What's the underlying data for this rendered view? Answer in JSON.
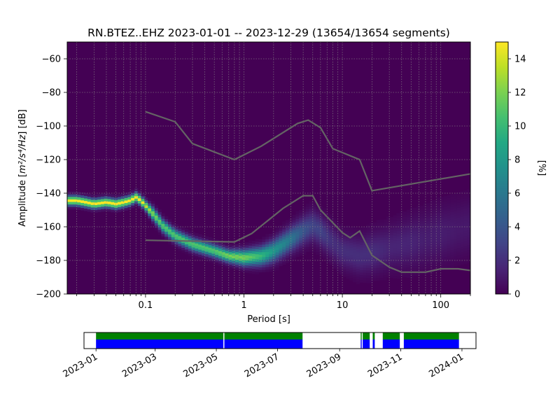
{
  "chart_data": {
    "type": "heatmap",
    "title": "RN.BTEZ..EHZ   2023-01-01 -- 2023-12-29  (13654/13654 segments)",
    "xlabel": "Period [s]",
    "ylabel_prefix": "Amplitude [",
    "ylabel_math": "m²/s⁴/Hz",
    "ylabel_suffix": "] [dB]",
    "x_scale": "log",
    "xlim": [
      0.016,
      200
    ],
    "ylim": [
      -200,
      -50
    ],
    "x_ticks": [
      {
        "value": 0.1,
        "label": "0.1"
      },
      {
        "value": 1,
        "label": "1"
      },
      {
        "value": 10,
        "label": "10"
      },
      {
        "value": 100,
        "label": "100"
      }
    ],
    "y_ticks": [
      {
        "value": -60,
        "label": "−60"
      },
      {
        "value": -80,
        "label": "−80"
      },
      {
        "value": -100,
        "label": "−100"
      },
      {
        "value": -120,
        "label": "−120"
      },
      {
        "value": -140,
        "label": "−140"
      },
      {
        "value": -160,
        "label": "−160"
      },
      {
        "value": -180,
        "label": "−180"
      },
      {
        "value": -200,
        "label": "−200"
      }
    ],
    "grid": true,
    "colormap": "viridis",
    "colorbar": {
      "label": "[%]",
      "range": [
        0,
        15
      ],
      "ticks": [
        {
          "value": 0,
          "label": "0"
        },
        {
          "value": 2,
          "label": "2"
        },
        {
          "value": 4,
          "label": "4"
        },
        {
          "value": 6,
          "label": "6"
        },
        {
          "value": 8,
          "label": "8"
        },
        {
          "value": 10,
          "label": "10"
        },
        {
          "value": 12,
          "label": "12"
        },
        {
          "value": 14,
          "label": "14"
        }
      ]
    },
    "psd_mode_curve": {
      "period": [
        0.016,
        0.02,
        0.025,
        0.03,
        0.04,
        0.05,
        0.06,
        0.07,
        0.08,
        0.09,
        0.1,
        0.12,
        0.15,
        0.2,
        0.3,
        0.5,
        0.7,
        1.0,
        1.5,
        2.0,
        3.0,
        4.0,
        5.0,
        6.0,
        8.0,
        10,
        15,
        20,
        30,
        50,
        70,
        100,
        150,
        200
      ],
      "amplitude_db": [
        -145,
        -145,
        -146,
        -147,
        -146,
        -147,
        -146,
        -145,
        -143,
        -145,
        -148,
        -153,
        -160,
        -166,
        -171,
        -175,
        -178,
        -179,
        -178,
        -175,
        -168,
        -163,
        -160,
        -163,
        -170,
        -175,
        -178,
        -176,
        -173,
        -170,
        -168,
        -165,
        -162,
        -160
      ],
      "spread_db": [
        3,
        3,
        3,
        3,
        3,
        3,
        3,
        3,
        3,
        3,
        3,
        4,
        4,
        4,
        4,
        4,
        4,
        5,
        6,
        7,
        8,
        9,
        10,
        10,
        11,
        11,
        12,
        13,
        14,
        16,
        17,
        18,
        18,
        18
      ],
      "peak_percent": [
        15,
        15,
        15,
        15,
        15,
        15,
        15,
        15,
        15,
        15,
        14,
        12,
        11,
        11,
        11,
        11,
        12,
        12,
        10,
        8,
        6,
        4,
        3,
        3,
        2,
        2,
        2,
        2,
        1.5,
        1.5,
        1.2,
        1.2,
        1,
        1
      ]
    },
    "series": [
      {
        "name": "",
        "period": [
          0.1,
          0.2,
          0.3,
          0.8,
          1.5,
          3.5,
          4.5,
          6.0,
          8.0,
          15,
          20,
          200
        ],
        "amplitude_db": [
          -91.5,
          -97.5,
          -110.5,
          -120,
          -112,
          -98.5,
          -96.5,
          -101,
          -113.5,
          -120,
          -138.5,
          -128.5
        ]
      },
      {
        "name": "",
        "period": [
          0.1,
          0.8,
          1.2,
          2.5,
          4.0,
          5.0,
          6.0,
          10,
          12,
          15,
          20,
          30,
          40,
          70,
          100,
          150,
          200
        ],
        "amplitude_db": [
          -168,
          -169,
          -164,
          -149,
          -141.5,
          -141.5,
          -150,
          -163.5,
          -166.5,
          -162.5,
          -177,
          -184,
          -187,
          -187,
          -185,
          -185,
          -186
        ]
      }
    ],
    "data_availability": {
      "x_range": [
        "2022-12-20",
        "2024-01-15"
      ],
      "x_ticks": [
        "2023-01",
        "2023-03",
        "2023-05",
        "2023-07",
        "2023-09",
        "2023-11",
        "2024-01"
      ],
      "available_color": "#0000ff",
      "gaps_color": "#008000",
      "segments": [
        [
          "2023-01-01",
          "2023-05-08"
        ],
        [
          "2023-05-09",
          "2023-07-26"
        ],
        [
          "2023-09-22",
          "2023-09-23"
        ],
        [
          "2023-09-24",
          "2023-10-01"
        ],
        [
          "2023-10-04",
          "2023-10-06"
        ],
        [
          "2023-10-14",
          "2023-10-31"
        ],
        [
          "2023-11-04",
          "2023-12-29"
        ]
      ]
    }
  }
}
